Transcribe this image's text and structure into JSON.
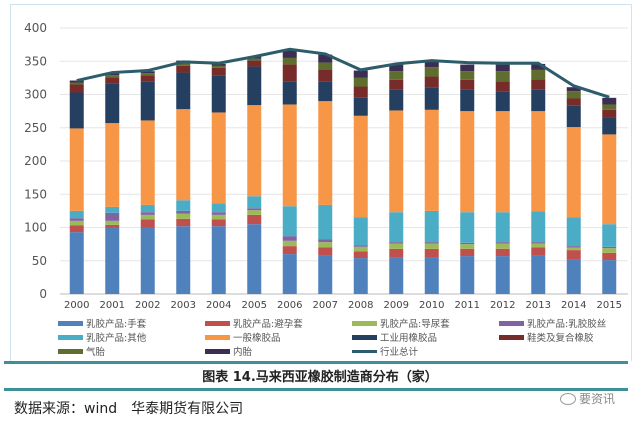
{
  "chart_data": {
    "type": "bar",
    "stacked": true,
    "title": "",
    "xlabel": "",
    "ylabel": "",
    "ylim": [
      0,
      400
    ],
    "yticks": [
      0,
      50,
      100,
      150,
      200,
      250,
      300,
      350,
      400
    ],
    "grid": true,
    "legend_position": "bottom",
    "categories": [
      "2000",
      "2001",
      "2002",
      "2003",
      "2004",
      "2005",
      "2006",
      "2007",
      "2008",
      "2009",
      "2010",
      "2011",
      "2012",
      "2013",
      "2014",
      "2015"
    ],
    "series": [
      {
        "name": "乳胶产品:手套",
        "color": "#4f81bd",
        "values": [
          93,
          100,
          100,
          102,
          102,
          105,
          60,
          58,
          54,
          55,
          55,
          57,
          57,
          58,
          52,
          51
        ]
      },
      {
        "name": "乳胶产品:避孕套",
        "color": "#c0504d",
        "values": [
          10,
          4,
          12,
          11,
          10,
          14,
          12,
          12,
          10,
          13,
          13,
          11,
          11,
          12,
          14,
          11
        ]
      },
      {
        "name": "乳胶产品:导尿套",
        "color": "#9bbb59",
        "values": [
          7,
          6,
          7,
          8,
          7,
          7,
          8,
          8,
          7,
          8,
          8,
          7,
          8,
          6,
          4,
          7
        ]
      },
      {
        "name": "乳胶产品:乳胶胶丝",
        "color": "#8064a2",
        "values": [
          4,
          12,
          4,
          4,
          4,
          3,
          7,
          4,
          2,
          2,
          2,
          2,
          2,
          2,
          2,
          2
        ]
      },
      {
        "name": "乳胶产品:其他",
        "color": "#4bacc6",
        "values": [
          11,
          9,
          11,
          16,
          13,
          18,
          45,
          52,
          42,
          45,
          47,
          46,
          45,
          46,
          43,
          34
        ]
      },
      {
        "name": "一般橡胶品",
        "color": "#f79646",
        "values": [
          124,
          126,
          127,
          137,
          137,
          137,
          153,
          156,
          153,
          153,
          152,
          152,
          152,
          151,
          136,
          135
        ]
      },
      {
        "name": "工业用橡胶品",
        "color": "#243f60",
        "values": [
          54,
          60,
          58,
          55,
          55,
          58,
          34,
          30,
          27,
          32,
          34,
          33,
          30,
          32,
          32,
          26
        ]
      },
      {
        "name": "鞋类及复合橡胶",
        "color": "#772c2a",
        "values": [
          12,
          9,
          10,
          10,
          12,
          9,
          26,
          18,
          17,
          14,
          16,
          14,
          15,
          16,
          11,
          11
        ]
      },
      {
        "name": "气胎",
        "color": "#5f6e2e",
        "values": [
          3,
          3,
          3,
          5,
          3,
          3,
          10,
          10,
          13,
          13,
          14,
          13,
          15,
          14,
          11,
          8
        ]
      },
      {
        "name": "内胎",
        "color": "#3b2e52",
        "values": [
          3,
          4,
          3,
          3,
          3,
          3,
          12,
          12,
          11,
          10,
          9,
          10,
          10,
          9,
          6,
          10
        ]
      }
    ],
    "line": {
      "name": "行业总计",
      "color": "#2d5d6b",
      "values": [
        321,
        333,
        336,
        349,
        347,
        357,
        368,
        361,
        337,
        346,
        351,
        348,
        347,
        347,
        313,
        296
      ]
    }
  },
  "caption": "图表 14.马来西亚橡胶制造商分布（家）",
  "source": "数据来源：wind　华泰期货有限公司",
  "watermark": "要资讯"
}
